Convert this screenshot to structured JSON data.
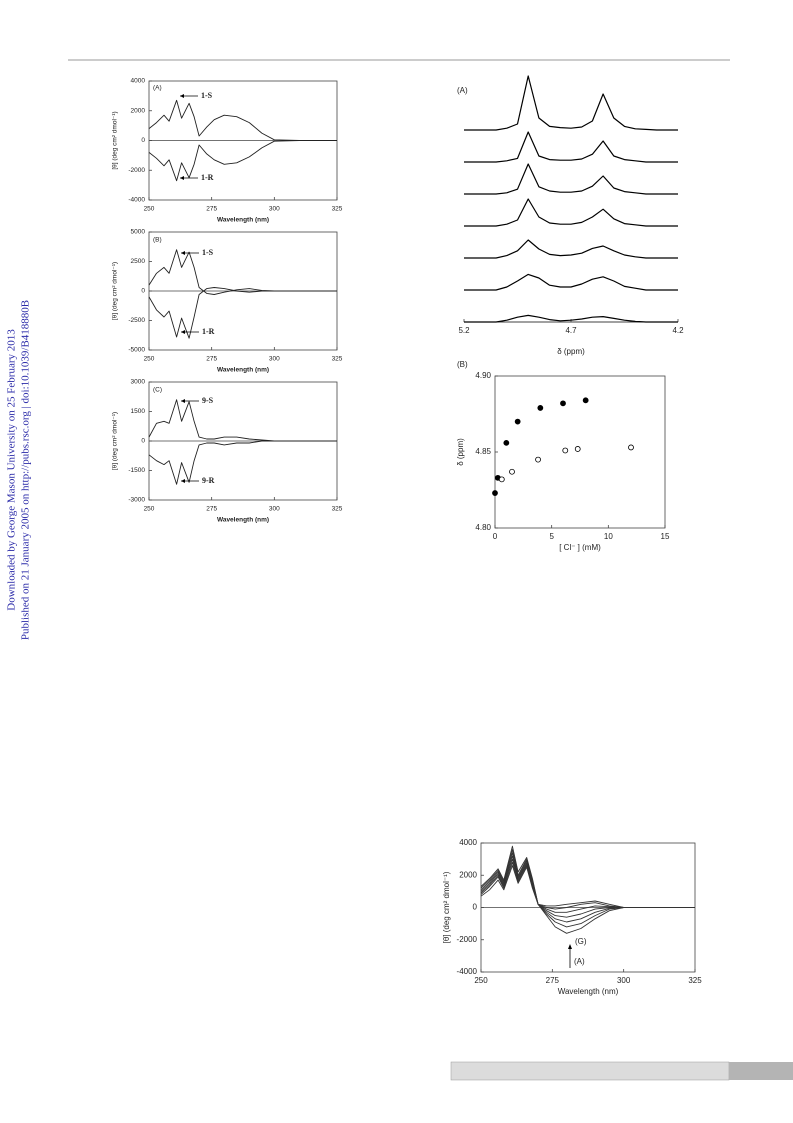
{
  "sidebar": {
    "line1": "Downloaded by George Mason University on 25 February 2013",
    "line2": "Published on 21 January 2005 on http://pubs.rsc.org | doi:10.1039/B418880B"
  },
  "chart_data": [
    {
      "type": "line",
      "panel_label": "(A)",
      "xlabel": "Wavelength (nm)",
      "ylabel": "[θ] (deg cm² dmol⁻¹)",
      "x": [
        250,
        253,
        256,
        258,
        261,
        263,
        266,
        268,
        270,
        273,
        276,
        280,
        285,
        290,
        295,
        300,
        310,
        325
      ],
      "xlim": [
        250,
        325
      ],
      "xticks": [
        250,
        275,
        300,
        325
      ],
      "ylim": [
        -4000,
        4000
      ],
      "yticks": [
        -4000,
        -2000,
        0,
        2000,
        4000
      ],
      "annotations": [
        "1-S",
        "1-R"
      ],
      "series": [
        {
          "color": "#222222",
          "values": [
            800,
            1200,
            1700,
            1300,
            2700,
            1500,
            2500,
            1600,
            300,
            900,
            1400,
            1700,
            1600,
            1200,
            500,
            50,
            0,
            0
          ]
        },
        {
          "color": "#222222",
          "values": [
            -800,
            -1200,
            -1700,
            -1300,
            -2700,
            -1500,
            -2500,
            -1600,
            -300,
            -900,
            -1300,
            -1600,
            -1500,
            -1100,
            -500,
            -50,
            0,
            0
          ]
        }
      ]
    },
    {
      "type": "line",
      "panel_label": "(B)",
      "xlabel": "Wavelength (nm)",
      "ylabel": "[θ] (deg cm² dmol⁻¹)",
      "x": [
        250,
        253,
        256,
        258,
        261,
        263,
        266,
        268,
        270,
        273,
        276,
        280,
        285,
        290,
        295,
        300,
        310,
        325
      ],
      "xlim": [
        250,
        325
      ],
      "xticks": [
        250,
        275,
        300,
        325
      ],
      "ylim": [
        -5000,
        5000
      ],
      "yticks": [
        -5000,
        -2500,
        0,
        2500,
        5000
      ],
      "annotations": [
        "1-S",
        "1-R"
      ],
      "series": [
        {
          "color": "#222222",
          "values": [
            500,
            1500,
            2000,
            1500,
            3500,
            2000,
            3300,
            2000,
            300,
            -200,
            -300,
            -100,
            100,
            200,
            50,
            0,
            0,
            0
          ]
        },
        {
          "color": "#222222",
          "values": [
            -500,
            -1600,
            -2200,
            -1700,
            -3900,
            -2300,
            -4000,
            -2200,
            -300,
            200,
            300,
            200,
            0,
            -100,
            0,
            0,
            0,
            0
          ]
        }
      ]
    },
    {
      "type": "line",
      "panel_label": "(C)",
      "xlabel": "Wavelength (nm)",
      "ylabel": "[θ] (deg cm² dmol⁻¹)",
      "x": [
        250,
        253,
        256,
        258,
        261,
        263,
        266,
        268,
        270,
        273,
        276,
        280,
        285,
        290,
        295,
        300,
        310,
        325
      ],
      "xlim": [
        250,
        325
      ],
      "xticks": [
        250,
        275,
        300,
        325
      ],
      "ylim": [
        -3000,
        3000
      ],
      "yticks": [
        -3000,
        -1500,
        0,
        1500,
        3000
      ],
      "annotations": [
        "9-S",
        "9-R"
      ],
      "series": [
        {
          "color": "#222222",
          "values": [
            200,
            900,
            1000,
            900,
            2100,
            1000,
            2000,
            1000,
            200,
            100,
            100,
            200,
            200,
            100,
            50,
            0,
            0,
            0
          ]
        },
        {
          "color": "#222222",
          "values": [
            -700,
            -1000,
            -1200,
            -1000,
            -2200,
            -1100,
            -2100,
            -1000,
            -200,
            -100,
            -100,
            -200,
            -100,
            -100,
            0,
            0,
            0,
            0
          ]
        }
      ]
    },
    {
      "type": "stacked_line",
      "panel_label": "(A)",
      "xlabel": "δ (ppm)",
      "x": [
        5.2,
        5.15,
        5.1,
        5.05,
        5.0,
        4.95,
        4.9,
        4.85,
        4.8,
        4.75,
        4.7,
        4.65,
        4.6,
        4.55,
        4.5,
        4.45,
        4.4,
        4.35,
        4.3,
        4.25,
        4.2
      ],
      "xlim": [
        5.2,
        4.2
      ],
      "xticks": [
        5.2,
        4.7,
        4.2
      ],
      "series": [
        {
          "color": "#000000",
          "values": [
            0,
            0,
            0,
            0,
            0.3,
            1,
            9,
            2,
            0.6,
            0.4,
            0.3,
            0.5,
            1.5,
            6,
            2,
            0.6,
            0.2,
            0.1,
            0,
            0,
            0
          ]
        },
        {
          "color": "#000000",
          "values": [
            0,
            0,
            0,
            0,
            0.2,
            0.6,
            5,
            1,
            0.4,
            0.3,
            0.3,
            0.5,
            1.3,
            3.5,
            1,
            0.4,
            0.2,
            0,
            0,
            0,
            0
          ]
        },
        {
          "color": "#000000",
          "values": [
            0,
            0,
            0,
            0,
            0.2,
            0.8,
            5,
            1.2,
            0.5,
            0.3,
            0.3,
            0.5,
            1.3,
            3,
            1,
            0.4,
            0.2,
            0,
            0,
            0,
            0
          ]
        },
        {
          "color": "#000000",
          "values": [
            0,
            0,
            0,
            0,
            0.3,
            1,
            4.5,
            1.5,
            0.5,
            0.3,
            0.3,
            0.6,
            1.5,
            2.8,
            1.2,
            0.4,
            0.2,
            0,
            0,
            0,
            0
          ]
        },
        {
          "color": "#000000",
          "values": [
            0,
            0,
            0,
            0,
            0.4,
            1.2,
            3,
            1.5,
            0.6,
            0.4,
            0.5,
            0.8,
            1.6,
            2,
            1.2,
            0.5,
            0.2,
            0,
            0,
            0,
            0
          ]
        },
        {
          "color": "#000000",
          "values": [
            0,
            0,
            0,
            0,
            0.5,
            1.5,
            2.6,
            2,
            0.8,
            0.5,
            0.5,
            1,
            1.8,
            2.2,
            1.5,
            0.6,
            0.3,
            0,
            0,
            0,
            0
          ]
        },
        {
          "color": "#000000",
          "values": [
            0,
            0,
            0,
            0,
            0.3,
            0.8,
            1.1,
            0.8,
            0.4,
            0.2,
            0.3,
            0.5,
            0.8,
            0.9,
            0.6,
            0.3,
            0.1,
            0,
            0,
            0,
            0
          ]
        }
      ]
    },
    {
      "type": "scatter",
      "panel_label": "(B)",
      "xlabel": "[ Cl⁻ ] (mM)",
      "ylabel": "δ (ppm)",
      "xlim": [
        0,
        15
      ],
      "xticks": [
        0,
        5,
        10,
        15
      ],
      "ylim": [
        4.8,
        4.9
      ],
      "yticks": [
        {
          "value": 4.8,
          "label": "4.80"
        },
        {
          "value": 4.85,
          "label": "4.85"
        },
        {
          "value": 4.9,
          "label": "4.90"
        }
      ],
      "series": [
        {
          "color": "#000000",
          "marker": "filled",
          "x": [
            0,
            0.25,
            1,
            2,
            4,
            6,
            8
          ],
          "values": [
            4.823,
            4.833,
            4.856,
            4.87,
            4.879,
            4.882,
            4.884
          ]
        },
        {
          "color": "#000000",
          "marker": "open",
          "x": [
            0.6,
            1.5,
            3.8,
            6.2,
            7.3,
            12
          ],
          "values": [
            4.832,
            4.837,
            4.845,
            4.851,
            4.852,
            4.853
          ]
        }
      ]
    },
    {
      "type": "line",
      "xlabel": "Wavelength (nm)",
      "ylabel": "[θ] (deg cm² dmol⁻¹)",
      "x": [
        250,
        253,
        256,
        258,
        261,
        263,
        266,
        268,
        270,
        273,
        276,
        280,
        285,
        290,
        295,
        300,
        310,
        325
      ],
      "xlim": [
        250,
        325
      ],
      "xticks": [
        250,
        275,
        300,
        325
      ],
      "ylim": [
        -4000,
        4000
      ],
      "yticks": [
        -4000,
        -2000,
        0,
        2000,
        4000
      ],
      "annotations": [
        "(G)",
        "(A)"
      ],
      "series": [
        {
          "color": "#333333",
          "values": [
            1300,
            1800,
            2400,
            1700,
            3800,
            2200,
            3100,
            1800,
            200,
            -500,
            -1200,
            -1600,
            -1300,
            -700,
            -200,
            0,
            0,
            0
          ]
        },
        {
          "color": "#333333",
          "values": [
            1200,
            1700,
            2300,
            1600,
            3600,
            2000,
            3000,
            1700,
            200,
            -400,
            -900,
            -1200,
            -1000,
            -500,
            -100,
            0,
            0,
            0
          ]
        },
        {
          "color": "#333333",
          "values": [
            1100,
            1600,
            2200,
            1500,
            3400,
            1900,
            2900,
            1600,
            200,
            -300,
            -700,
            -900,
            -700,
            -300,
            -50,
            0,
            0,
            0
          ]
        },
        {
          "color": "#333333",
          "values": [
            1000,
            1500,
            2100,
            1400,
            3200,
            1800,
            2800,
            1500,
            200,
            -200,
            -500,
            -600,
            -400,
            -100,
            0,
            0,
            0,
            0
          ]
        },
        {
          "color": "#333333",
          "values": [
            900,
            1400,
            2000,
            1300,
            3000,
            1700,
            2700,
            1400,
            200,
            -100,
            -300,
            -300,
            -100,
            100,
            50,
            0,
            0,
            0
          ]
        },
        {
          "color": "#333333",
          "values": [
            800,
            1300,
            1900,
            1200,
            2800,
            1600,
            2600,
            1300,
            200,
            0,
            -100,
            0,
            200,
            300,
            100,
            0,
            0,
            0
          ]
        },
        {
          "color": "#333333",
          "values": [
            700,
            1100,
            1700,
            1100,
            2600,
            1500,
            2500,
            1200,
            200,
            100,
            100,
            200,
            300,
            400,
            200,
            0,
            0,
            0
          ]
        }
      ]
    }
  ]
}
